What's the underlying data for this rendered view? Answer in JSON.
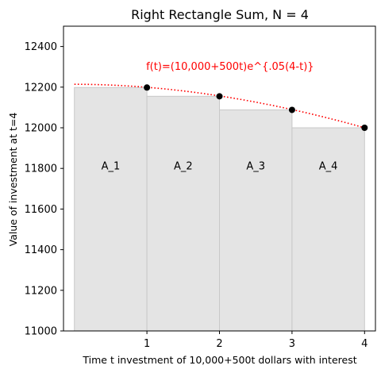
{
  "chart_data": {
    "type": "bar",
    "title": "Right Rectangle Sum, N = 4",
    "xlabel": "Time t investment of 10,000+500t dollars with interest",
    "ylabel": "Value of investment at t=4",
    "xlim": [
      -0.15,
      4.15
    ],
    "ylim": [
      11000,
      12500
    ],
    "xticks": [
      1,
      2,
      3,
      4
    ],
    "yticks": [
      11000,
      11200,
      11400,
      11600,
      11800,
      12000,
      12200,
      12400
    ],
    "grid": false,
    "rectangles": [
      {
        "label": "A_1",
        "x_start": 0,
        "x_end": 1,
        "height": 12198
      },
      {
        "label": "A_2",
        "x_start": 1,
        "x_end": 2,
        "height": 12155
      },
      {
        "label": "A_3",
        "x_start": 2,
        "x_end": 3,
        "height": 12088
      },
      {
        "label": "A_4",
        "x_start": 3,
        "x_end": 4,
        "height": 12000
      }
    ],
    "rectangle_label_y": 11810,
    "sample_points": {
      "x": [
        1,
        2,
        3,
        4
      ],
      "y": [
        12198,
        12155,
        12088,
        12000
      ]
    },
    "curve": {
      "function_label": "f(t)=(10,000+500t)e^{.05(4-t)}",
      "x_range": [
        0,
        4
      ],
      "color": "#ff0000",
      "style": "dotted"
    },
    "rectangle_fill": "#e4e4e4",
    "rectangle_edge": "#c8c8c8",
    "point_color": "#000000"
  }
}
